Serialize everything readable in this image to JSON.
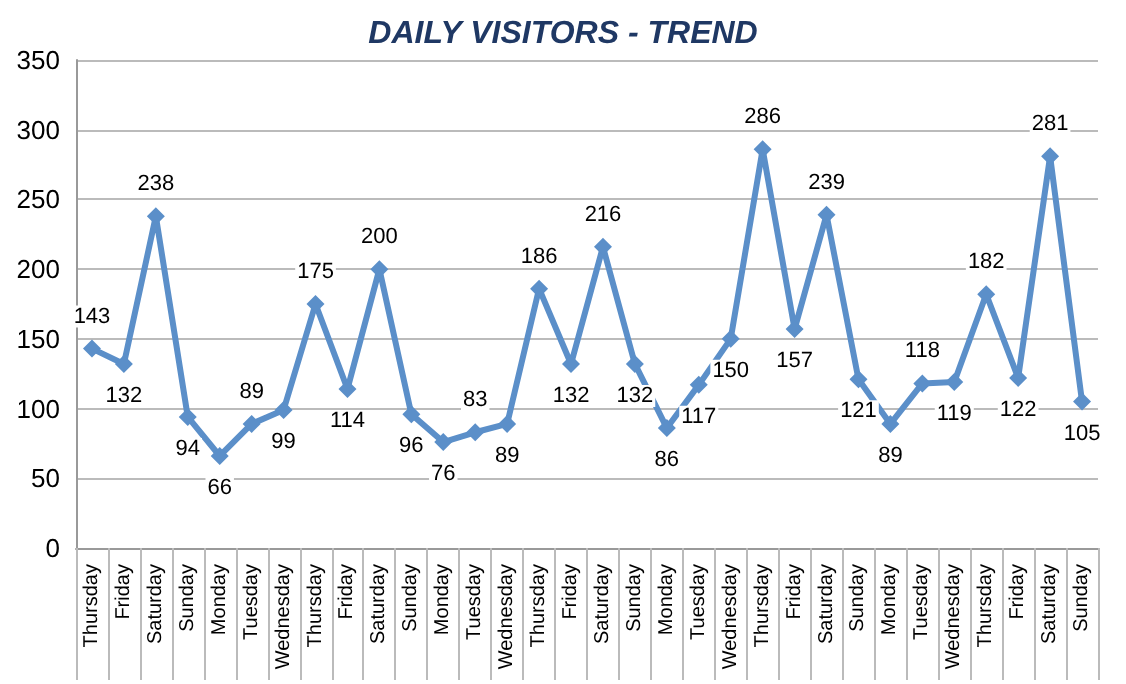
{
  "chart_data": {
    "type": "line",
    "title": "DAILY VISITORS - TREND",
    "categories": [
      "Thursday",
      "Friday",
      "Saturday",
      "Sunday",
      "Monday",
      "Tuesday",
      "Wednesday",
      "Thursday",
      "Friday",
      "Saturday",
      "Sunday",
      "Monday",
      "Tuesday",
      "Wednesday",
      "Thursday",
      "Friday",
      "Saturday",
      "Sunday",
      "Monday",
      "Tuesday",
      "Wednesday",
      "Thursday",
      "Friday",
      "Saturday",
      "Sunday",
      "Monday",
      "Tuesday",
      "Wednesday",
      "Thursday",
      "Friday",
      "Saturday",
      "Sunday"
    ],
    "series": [
      {
        "color": "#5b8fc9",
        "values": [
          143,
          132,
          238,
          94,
          66,
          89,
          99,
          175,
          114,
          200,
          96,
          76,
          83,
          89,
          186,
          132,
          216,
          132,
          86,
          117,
          150,
          286,
          157,
          239,
          121,
          89,
          118,
          119,
          182,
          122,
          281,
          105
        ]
      }
    ],
    "ylim": [
      0,
      350
    ],
    "yticks": [
      0,
      50,
      100,
      150,
      200,
      250,
      300,
      350
    ],
    "grid": "y",
    "marker": "diamond",
    "line_style": "solid",
    "data_labels": true
  }
}
